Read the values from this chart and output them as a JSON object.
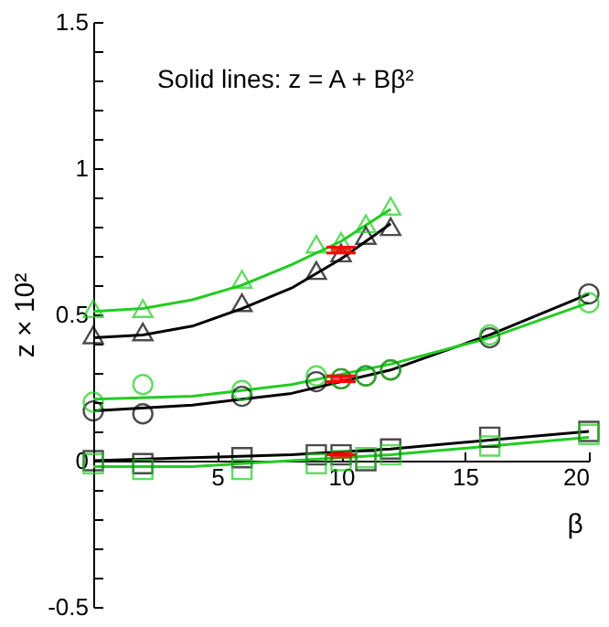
{
  "chart_data": {
    "type": "scatter",
    "xlabel": "β",
    "ylabel": "z × 10²",
    "annotations": [
      "Solid lines: z = A + Bβ²"
    ],
    "xlim": [
      0,
      20
    ],
    "xticks": [
      5,
      10,
      15,
      20
    ],
    "ylim": [
      -0.5,
      1.5
    ],
    "yticks": [
      -0.5,
      {
        "value": -0.4,
        "label": null
      },
      {
        "value": -0.3,
        "label": null
      },
      {
        "value": -0.2,
        "label": null
      },
      {
        "value": -0.1,
        "label": null
      },
      0,
      {
        "value": 0.1,
        "label": null
      },
      {
        "value": 0.2,
        "label": null
      },
      {
        "value": 0.3,
        "label": null
      },
      {
        "value": 0.4,
        "label": null
      },
      0.5,
      {
        "value": 0.6,
        "label": null
      },
      {
        "value": 0.7,
        "label": null
      },
      {
        "value": 0.8,
        "label": null
      },
      {
        "value": 0.9,
        "label": null
      },
      1,
      {
        "value": 1.1,
        "label": null
      },
      {
        "value": 1.2,
        "label": null
      },
      {
        "value": 1.3,
        "label": null
      },
      {
        "value": 1.4,
        "label": null
      },
      1.5
    ],
    "grid": false,
    "line_style": "solid",
    "series": [
      {
        "type": "line",
        "color": "#000000",
        "x": [
          0,
          2,
          4,
          6,
          8,
          10,
          12
        ],
        "values": [
          0.42,
          0.43,
          0.46,
          0.52,
          0.59,
          0.69,
          0.81
        ]
      },
      {
        "type": "line",
        "color": "#22cc22",
        "x": [
          0,
          2,
          4,
          6,
          8,
          10,
          12
        ],
        "values": [
          0.51,
          0.52,
          0.55,
          0.6,
          0.67,
          0.75,
          0.86
        ]
      },
      {
        "type": "line",
        "color": "#000000",
        "x": [
          0,
          4,
          8,
          12,
          16,
          20
        ],
        "values": [
          0.17,
          0.19,
          0.23,
          0.31,
          0.43,
          0.57
        ]
      },
      {
        "type": "line",
        "color": "#22cc22",
        "x": [
          0,
          4,
          8,
          12,
          16,
          20
        ],
        "values": [
          0.21,
          0.22,
          0.26,
          0.33,
          0.42,
          0.54
        ]
      },
      {
        "type": "line",
        "color": "#000000",
        "x": [
          0,
          4,
          8,
          12,
          16,
          20
        ],
        "values": [
          0.0,
          0.01,
          0.02,
          0.04,
          0.07,
          0.1
        ]
      },
      {
        "type": "line",
        "color": "#22cc22",
        "x": [
          0,
          4,
          8,
          12,
          16,
          20
        ],
        "values": [
          -0.02,
          -0.02,
          0.0,
          0.02,
          0.05,
          0.08
        ]
      },
      {
        "marker": "triangle",
        "color": "#000000",
        "x": [
          0,
          2,
          6,
          9,
          10,
          11,
          12
        ],
        "values": [
          0.43,
          0.44,
          0.54,
          0.65,
          0.71,
          0.77,
          0.8
        ]
      },
      {
        "marker": "triangle",
        "color": "#22cc22",
        "x": [
          0,
          2,
          6,
          9,
          10,
          11,
          12
        ],
        "values": [
          0.52,
          0.52,
          0.62,
          0.74,
          0.75,
          0.81,
          0.87
        ]
      },
      {
        "marker": "circle",
        "color": "#000000",
        "x": [
          0,
          2,
          6,
          9,
          10,
          11,
          12,
          16,
          20
        ],
        "values": [
          0.17,
          0.16,
          0.22,
          0.27,
          0.28,
          0.29,
          0.31,
          0.42,
          0.57
        ]
      },
      {
        "marker": "circle",
        "color": "#22cc22",
        "x": [
          0,
          2,
          6,
          9,
          10,
          11,
          12,
          16,
          20
        ],
        "values": [
          0.2,
          0.26,
          0.24,
          0.29,
          0.28,
          0.29,
          0.31,
          0.43,
          0.54
        ]
      },
      {
        "marker": "square",
        "color": "#000000",
        "x": [
          0,
          2,
          6,
          9,
          10,
          11,
          12,
          16,
          20
        ],
        "values": [
          0.0,
          -0.01,
          0.01,
          0.02,
          0.02,
          0.0,
          0.04,
          0.08,
          0.1
        ]
      },
      {
        "marker": "square",
        "color": "#22cc22",
        "x": [
          0,
          2,
          6,
          9,
          10,
          11,
          12,
          16,
          20
        ],
        "values": [
          -0.01,
          -0.03,
          -0.03,
          -0.01,
          0.0,
          0.01,
          0.02,
          0.05,
          0.09
        ]
      },
      {
        "color": "#ff0000",
        "x": [
          10,
          10,
          10
        ],
        "values": [
          0.72,
          0.28,
          0.02
        ],
        "errors": [
          0.01,
          0.01,
          0
        ]
      }
    ]
  }
}
